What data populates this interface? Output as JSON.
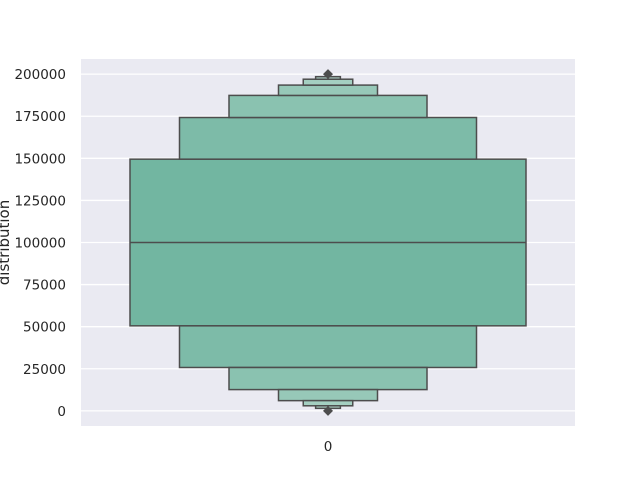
{
  "chart_data": {
    "type": "boxen",
    "title": "",
    "xlabel": "",
    "ylabel": "distribution",
    "categories": [
      "0"
    ],
    "ylim": [
      -9000,
      209000
    ],
    "yticks": [
      0,
      25000,
      50000,
      75000,
      100000,
      125000,
      150000,
      175000,
      200000
    ],
    "ytick_labels": [
      "0",
      "25000",
      "50000",
      "75000",
      "100000",
      "125000",
      "150000",
      "175000",
      "200000"
    ],
    "grid": true,
    "legend": "none",
    "median": 100000,
    "levels": [
      {
        "lower": 50500,
        "upper": 149500,
        "width_frac": 1.0
      },
      {
        "lower": 25750,
        "upper": 174250,
        "width_frac": 0.75
      },
      {
        "lower": 12625,
        "upper": 187375,
        "width_frac": 0.5
      },
      {
        "lower": 6063,
        "upper": 193500,
        "width_frac": 0.25
      },
      {
        "lower": 3000,
        "upper": 197000,
        "width_frac": 0.125
      },
      {
        "lower": 1500,
        "upper": 198500,
        "width_frac": 0.0625
      }
    ],
    "outliers": [
      0,
      200000
    ],
    "colors": {
      "axes_background": "#eaeaf2",
      "grid": "#ffffff",
      "box_edge": "#4d4d4d",
      "level_fills": [
        "#72b6a1",
        "#7dbba8",
        "#8ac2b0",
        "#97c8b8",
        "#a4cfc1",
        "#b1d6ca"
      ],
      "outlier": "#4d4d4d"
    }
  }
}
